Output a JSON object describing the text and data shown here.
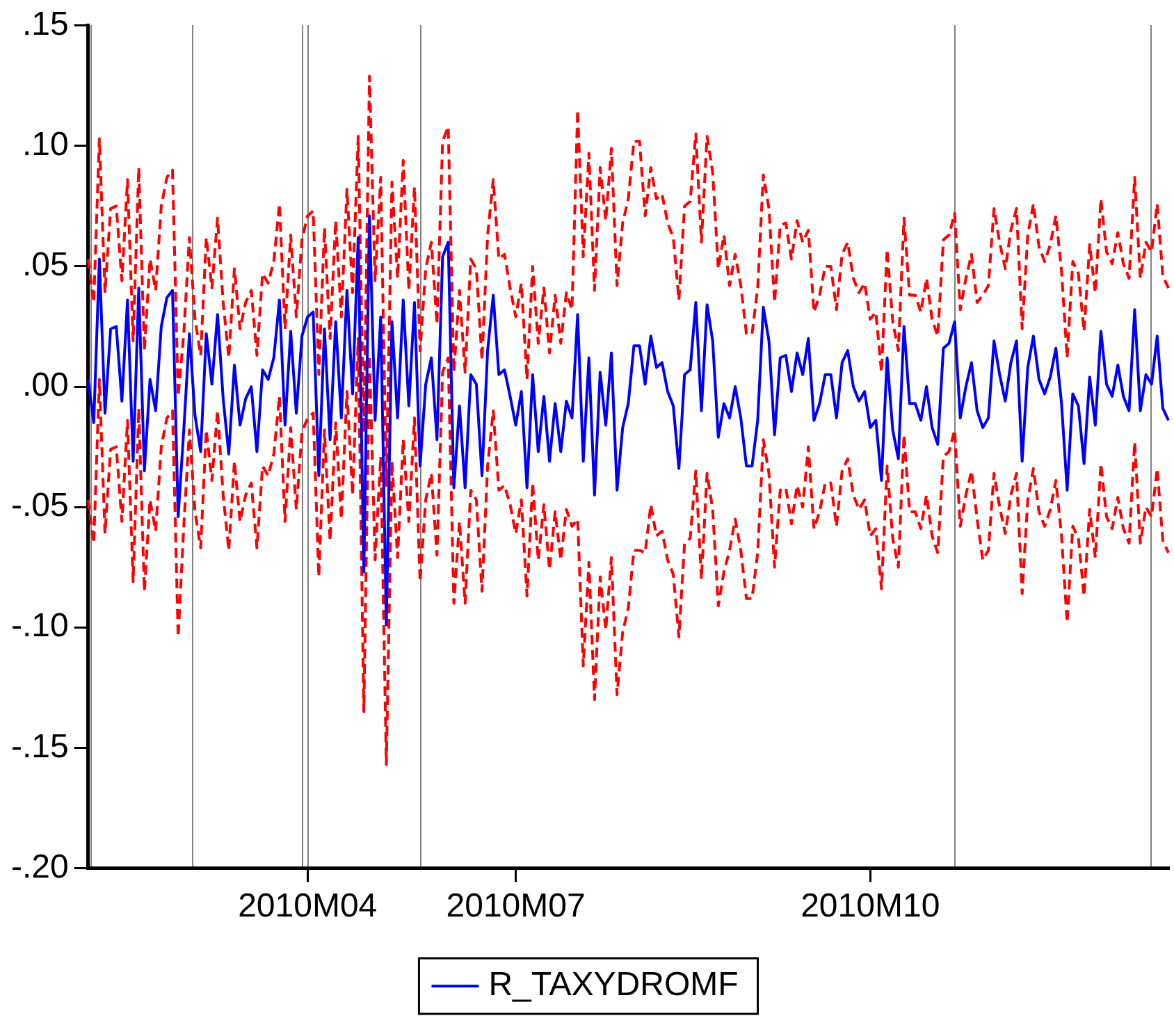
{
  "chart_data": {
    "type": "line",
    "marker": "none",
    "grid": false,
    "legend": "bottom",
    "categories": [
      null,
      null,
      null,
      null,
      null,
      null,
      null,
      null,
      null,
      null,
      null,
      null,
      null,
      null,
      null,
      null,
      null,
      null,
      null,
      null,
      null,
      null,
      null,
      null,
      null,
      null,
      null,
      null,
      null,
      null,
      null,
      null,
      null,
      null,
      null,
      null,
      null,
      null,
      null,
      "2010M04",
      null,
      null,
      null,
      null,
      null,
      null,
      null,
      null,
      null,
      null,
      null,
      null,
      null,
      null,
      null,
      null,
      null,
      null,
      null,
      null,
      null,
      null,
      null,
      null,
      null,
      null,
      null,
      null,
      null,
      null,
      null,
      null,
      null,
      null,
      null,
      null,
      "2010M07",
      null,
      null,
      null,
      null,
      null,
      null,
      null,
      null,
      null,
      null,
      null,
      null,
      null,
      null,
      null,
      null,
      null,
      null,
      null,
      null,
      null,
      null,
      null,
      null,
      null,
      null,
      null,
      null,
      null,
      null,
      null,
      null,
      null,
      null,
      null,
      null,
      null,
      null,
      null,
      null,
      null,
      null,
      null,
      null,
      null,
      null,
      null,
      null,
      null,
      null,
      null,
      null,
      null,
      null,
      null,
      null,
      null,
      null,
      null,
      null,
      null,
      null,
      "2010M10",
      null,
      null,
      null,
      null,
      null,
      null,
      null,
      null,
      null,
      null,
      null,
      null,
      null,
      null,
      null,
      null,
      null,
      null,
      null,
      null,
      null,
      null,
      null,
      null,
      null,
      null,
      null,
      null,
      null,
      null,
      null,
      null,
      null,
      null,
      null,
      null,
      null,
      null,
      null,
      null,
      null,
      null,
      null,
      null,
      null,
      null,
      null,
      null,
      null,
      null,
      null,
      null,
      null
    ],
    "ylim": [
      -0.2,
      0.15
    ],
    "yticks": [
      {
        "value": -0.2,
        "label": "-.20"
      },
      {
        "value": -0.15,
        "label": "-.15"
      },
      {
        "value": -0.1,
        "label": "-.10"
      },
      {
        "value": -0.05,
        "label": "-.05"
      },
      {
        "value": 0,
        "label": ".00"
      },
      {
        "value": 0.05,
        "label": ".05"
      },
      {
        "value": 0.1,
        "label": ".10"
      },
      {
        "value": 0.15,
        "label": ".15"
      }
    ],
    "series": [
      {
        "name": "R_TAXYDROMF",
        "color": "#0000ff",
        "line_style": "solid",
        "values": [
          0.003,
          -0.015,
          0.053,
          -0.011,
          0.024,
          0.025,
          -0.006,
          0.036,
          -0.031,
          0.041,
          -0.035,
          0.003,
          -0.01,
          0.025,
          0.037,
          0.04,
          -0.054,
          -0.018,
          0.022,
          -0.012,
          -0.027,
          0.022,
          0.001,
          0.03,
          -0.005,
          -0.028,
          0.009,
          -0.016,
          -0.005,
          0,
          -0.027,
          0.007,
          0.003,
          0.012,
          0.036,
          -0.016,
          0.023,
          -0.011,
          0.021,
          0.029,
          0.031,
          -0.037,
          0.024,
          -0.022,
          0.027,
          -0.013,
          0.04,
          -0.003,
          0.062,
          -0.077,
          0.071,
          -0.014,
          0.029,
          -0.099,
          0.027,
          -0.013,
          0.036,
          -0.008,
          0.035,
          -0.033,
          0.001,
          0.012,
          -0.022,
          0.054,
          0.06,
          -0.042,
          -0.008,
          -0.042,
          0.005,
          0.001,
          -0.037,
          0.015,
          0.038,
          0.005,
          0.007,
          -0.004,
          -0.016,
          -0.002,
          -0.042,
          0.005,
          -0.027,
          -0.004,
          -0.031,
          -0.007,
          -0.027,
          -0.006,
          -0.013,
          0.03,
          -0.031,
          0.012,
          -0.045,
          0.006,
          -0.016,
          0.014,
          -0.043,
          -0.017,
          -0.007,
          0.017,
          0.017,
          0.001,
          0.021,
          0.008,
          0.01,
          -0.002,
          -0.008,
          -0.034,
          0.005,
          0.007,
          0.035,
          -0.01,
          0.034,
          0.019,
          -0.021,
          -0.007,
          -0.013,
          0,
          -0.013,
          -0.033,
          -0.033,
          -0.014,
          0.033,
          0.019,
          -0.02,
          0.012,
          0.013,
          -0.002,
          0.014,
          0.005,
          0.02,
          -0.014,
          -0.007,
          0.005,
          0.005,
          -0.013,
          0.01,
          0.015,
          0,
          -0.006,
          -0.002,
          -0.017,
          -0.014,
          -0.039,
          0.012,
          -0.018,
          -0.03,
          0.025,
          -0.007,
          -0.007,
          -0.014,
          0,
          -0.017,
          -0.024,
          0.016,
          0.018,
          0.027,
          -0.013,
          0,
          0.01,
          -0.01,
          -0.017,
          -0.013,
          0.019,
          0.005,
          -0.006,
          0.01,
          0.019,
          -0.031,
          0.008,
          0.021,
          0.003,
          -0.003,
          0.004,
          0.016,
          -0.007,
          -0.043,
          -0.003,
          -0.008,
          -0.032,
          0.004,
          -0.016,
          0.023,
          0.001,
          -0.004,
          0.009,
          -0.004,
          -0.01,
          0.032,
          -0.01,
          0.005,
          0.001,
          0.021,
          -0.009,
          -0.014
        ]
      },
      {
        "color": "#ff0000",
        "line_style": "dashed",
        "values": [
          0.053,
          0.035,
          0.103,
          0.039,
          0.074,
          0.075,
          0.044,
          0.086,
          0.019,
          0.091,
          0.015,
          0.053,
          0.04,
          0.075,
          0.087,
          0.09,
          -0.004,
          0.022,
          0.062,
          0.028,
          0.013,
          0.062,
          0.041,
          0.07,
          0.035,
          0.012,
          0.049,
          0.024,
          0.035,
          0.04,
          0.013,
          0.047,
          0.043,
          0.052,
          0.076,
          0.024,
          0.063,
          0.029,
          0.061,
          0.071,
          0.073,
          0.005,
          0.066,
          0.02,
          0.069,
          0.029,
          0.082,
          0.039,
          0.104,
          -0.019,
          0.129,
          0.044,
          0.087,
          -0.041,
          0.085,
          0.045,
          0.094,
          0.04,
          0.083,
          0.015,
          0.049,
          0.06,
          0.026,
          0.102,
          0.108,
          0.006,
          0.04,
          0.006,
          0.053,
          0.049,
          0.011,
          0.063,
          0.086,
          0.053,
          0.055,
          0.041,
          0.029,
          0.043,
          0.003,
          0.05,
          0.018,
          0.041,
          0.014,
          0.038,
          0.018,
          0.039,
          0.032,
          0.115,
          0.054,
          0.097,
          0.04,
          0.091,
          0.069,
          0.099,
          0.042,
          0.068,
          0.078,
          0.102,
          0.102,
          0.071,
          0.091,
          0.078,
          0.08,
          0.068,
          0.062,
          0.036,
          0.075,
          0.077,
          0.105,
          0.06,
          0.104,
          0.089,
          0.049,
          0.063,
          0.042,
          0.055,
          0.042,
          0.022,
          0.022,
          0.041,
          0.088,
          0.074,
          0.035,
          0.067,
          0.068,
          0.053,
          0.069,
          0.06,
          0.065,
          0.031,
          0.038,
          0.05,
          0.05,
          0.032,
          0.055,
          0.06,
          0.045,
          0.039,
          0.043,
          0.028,
          0.031,
          0.006,
          0.057,
          0.027,
          0.015,
          0.07,
          0.038,
          0.038,
          0.031,
          0.045,
          0.028,
          0.021,
          0.061,
          0.063,
          0.072,
          0.032,
          0.045,
          0.055,
          0.035,
          0.038,
          0.042,
          0.074,
          0.06,
          0.049,
          0.065,
          0.074,
          0.024,
          0.063,
          0.076,
          0.058,
          0.052,
          0.059,
          0.071,
          0.048,
          0.012,
          0.052,
          0.047,
          0.023,
          0.059,
          0.039,
          0.078,
          0.056,
          0.051,
          0.064,
          0.051,
          0.045,
          0.087,
          0.045,
          0.06,
          0.056,
          0.076,
          0.046,
          0.041
        ]
      },
      {
        "color": "#ff0000",
        "line_style": "dashed",
        "values": [
          -0.047,
          -0.065,
          0.003,
          -0.061,
          -0.026,
          -0.025,
          -0.056,
          -0.014,
          -0.081,
          -0.009,
          -0.085,
          -0.047,
          -0.06,
          -0.025,
          -0.013,
          -0.01,
          -0.104,
          -0.058,
          -0.018,
          -0.052,
          -0.067,
          -0.018,
          -0.039,
          -0.01,
          -0.045,
          -0.068,
          -0.031,
          -0.056,
          -0.045,
          -0.04,
          -0.067,
          -0.033,
          -0.037,
          -0.028,
          -0.004,
          -0.056,
          -0.017,
          -0.051,
          -0.019,
          -0.013,
          -0.011,
          -0.079,
          -0.018,
          -0.064,
          -0.015,
          -0.055,
          -0.002,
          -0.045,
          0.02,
          -0.135,
          0.013,
          -0.072,
          -0.029,
          -0.157,
          -0.031,
          -0.071,
          -0.022,
          -0.056,
          -0.013,
          -0.081,
          -0.047,
          -0.036,
          -0.07,
          0.006,
          0.012,
          -0.09,
          -0.056,
          -0.09,
          -0.043,
          -0.047,
          -0.085,
          -0.033,
          -0.01,
          -0.043,
          -0.041,
          -0.049,
          -0.061,
          -0.047,
          -0.087,
          -0.04,
          -0.072,
          -0.049,
          -0.076,
          -0.052,
          -0.072,
          -0.051,
          -0.058,
          -0.055,
          -0.116,
          -0.073,
          -0.13,
          -0.079,
          -0.101,
          -0.071,
          -0.128,
          -0.102,
          -0.092,
          -0.068,
          -0.068,
          -0.069,
          -0.049,
          -0.062,
          -0.06,
          -0.072,
          -0.078,
          -0.104,
          -0.065,
          -0.063,
          -0.035,
          -0.08,
          -0.036,
          -0.051,
          -0.091,
          -0.077,
          -0.068,
          -0.055,
          -0.068,
          -0.088,
          -0.088,
          -0.069,
          -0.022,
          -0.036,
          -0.075,
          -0.043,
          -0.042,
          -0.057,
          -0.041,
          -0.05,
          -0.025,
          -0.059,
          -0.052,
          -0.04,
          -0.04,
          -0.058,
          -0.035,
          -0.03,
          -0.045,
          -0.051,
          -0.047,
          -0.062,
          -0.059,
          -0.084,
          -0.033,
          -0.063,
          -0.075,
          -0.02,
          -0.052,
          -0.052,
          -0.059,
          -0.045,
          -0.062,
          -0.069,
          -0.029,
          -0.027,
          -0.018,
          -0.058,
          -0.045,
          -0.035,
          -0.055,
          -0.072,
          -0.068,
          -0.036,
          -0.05,
          -0.061,
          -0.045,
          -0.036,
          -0.086,
          -0.047,
          -0.034,
          -0.052,
          -0.058,
          -0.051,
          -0.039,
          -0.062,
          -0.098,
          -0.058,
          -0.063,
          -0.087,
          -0.051,
          -0.071,
          -0.032,
          -0.054,
          -0.059,
          -0.046,
          -0.059,
          -0.065,
          -0.023,
          -0.065,
          -0.05,
          -0.054,
          -0.034,
          -0.064,
          -0.069
        ]
      }
    ]
  }
}
